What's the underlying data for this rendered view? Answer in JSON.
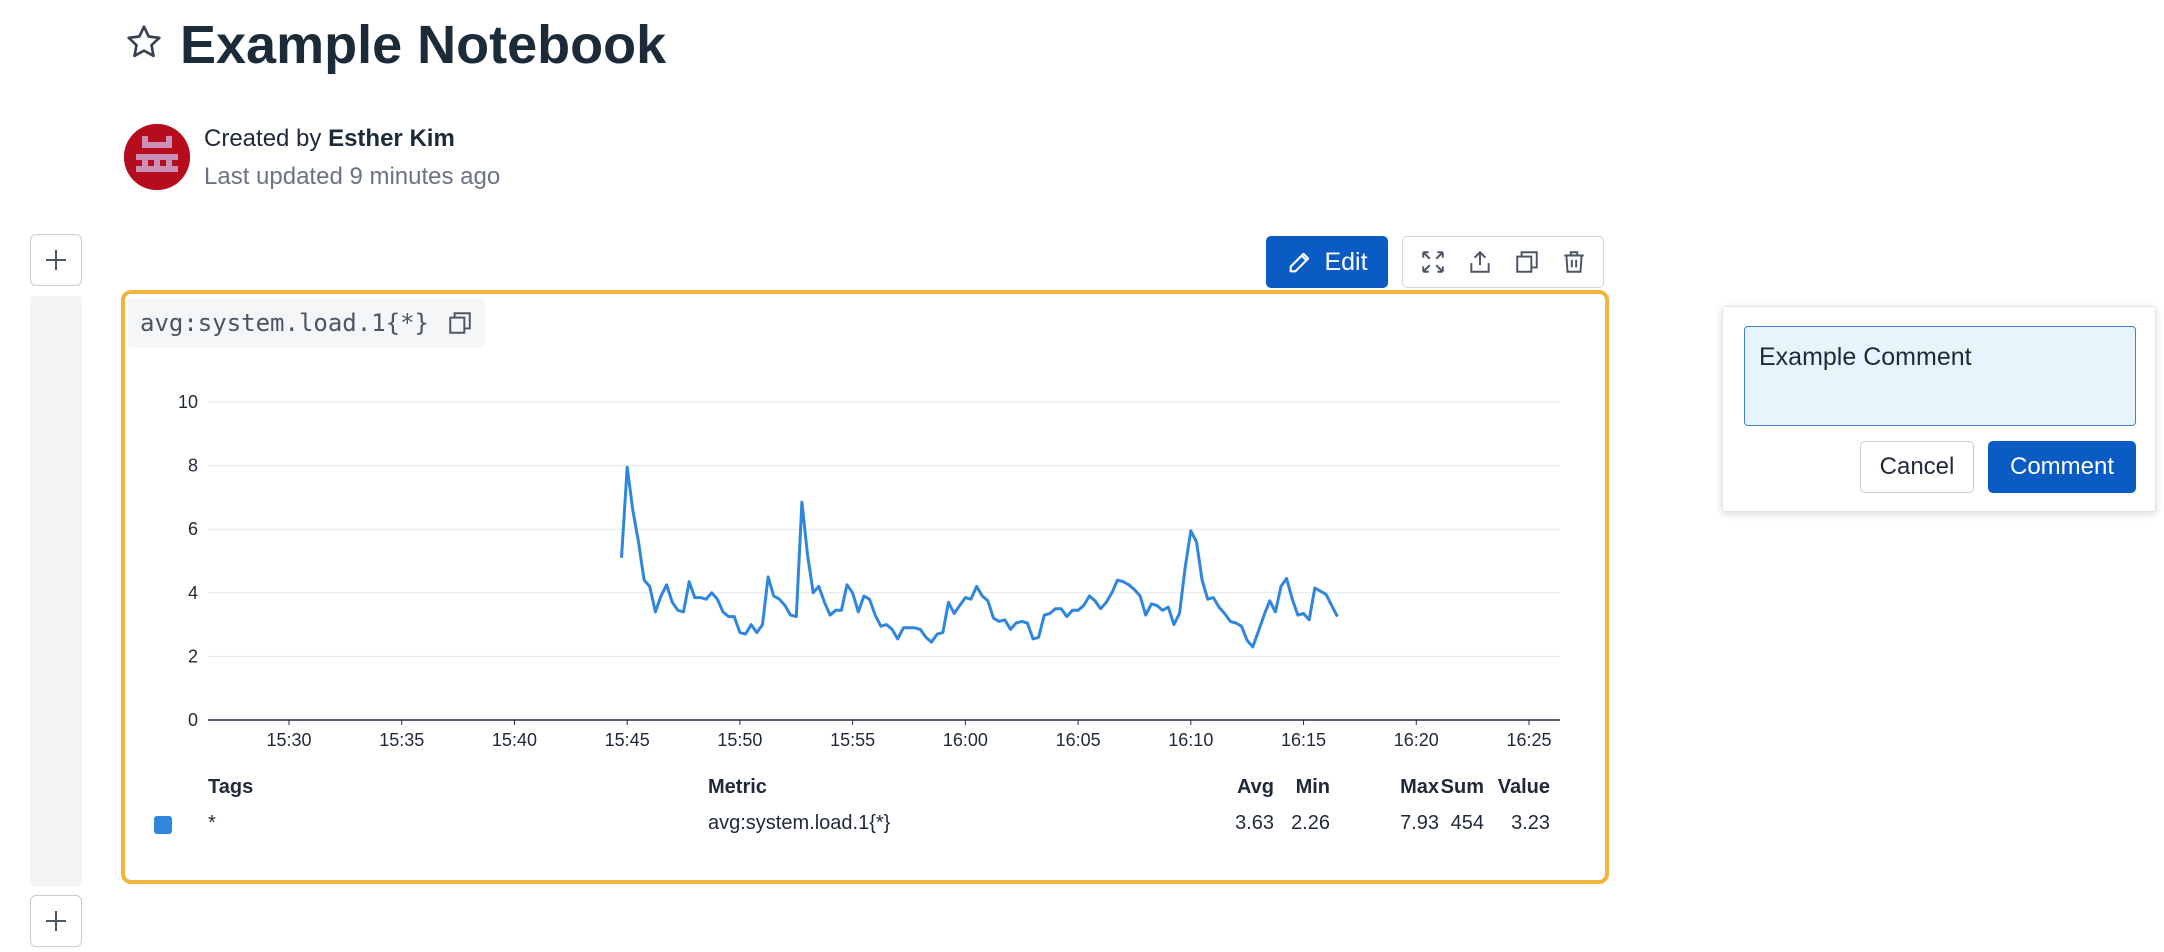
{
  "header": {
    "title": "Example Notebook",
    "star_icon": "star-outline-icon",
    "created_prefix": "Created by",
    "author": "Esther Kim",
    "updated": "Last updated 9 minutes ago"
  },
  "toolbar": {
    "edit_label": "Edit",
    "icons": [
      "expand-icon",
      "export-icon",
      "clone-icon",
      "trash-icon"
    ]
  },
  "cell": {
    "query": "avg:system.load.1{*}",
    "accent_color": "#f2b43a"
  },
  "chart_data": {
    "type": "line",
    "title": "",
    "xlabel": "",
    "ylabel": "",
    "ylim": [
      0,
      10
    ],
    "yticks": [
      "0",
      "2",
      "4",
      "6",
      "8",
      "10"
    ],
    "xticks": [
      "15:30",
      "15:35",
      "15:40",
      "15:45",
      "15:50",
      "15:55",
      "16:00",
      "16:05",
      "16:10",
      "16:15",
      "16:20",
      "16:25"
    ],
    "grid": true,
    "series": [
      {
        "name": "*",
        "color": "#2f86dc",
        "x_start": "15:44:45",
        "interval_seconds": 15,
        "values": [
          5.1,
          7.95,
          6.6,
          5.6,
          4.4,
          4.2,
          3.4,
          3.9,
          4.25,
          3.7,
          3.45,
          3.4,
          4.35,
          3.85,
          3.85,
          3.8,
          4.0,
          3.8,
          3.4,
          3.25,
          3.25,
          2.75,
          2.7,
          3.0,
          2.75,
          3.0,
          4.5,
          3.9,
          3.8,
          3.6,
          3.3,
          3.25,
          6.85,
          5.2,
          4.0,
          4.2,
          3.7,
          3.3,
          3.45,
          3.45,
          4.25,
          4.0,
          3.4,
          3.9,
          3.8,
          3.3,
          2.95,
          3.0,
          2.85,
          2.55,
          2.9,
          2.9,
          2.9,
          2.85,
          2.6,
          2.45,
          2.7,
          2.75,
          3.7,
          3.35,
          3.6,
          3.85,
          3.8,
          4.2,
          3.9,
          3.75,
          3.2,
          3.1,
          3.15,
          2.85,
          3.05,
          3.1,
          3.05,
          2.55,
          2.6,
          3.3,
          3.35,
          3.5,
          3.5,
          3.25,
          3.45,
          3.45,
          3.6,
          3.9,
          3.75,
          3.5,
          3.7,
          4.0,
          4.4,
          4.35,
          4.25,
          4.1,
          3.9,
          3.3,
          3.65,
          3.6,
          3.45,
          3.55,
          3.0,
          3.35,
          4.8,
          5.95,
          5.6,
          4.4,
          3.8,
          3.85,
          3.55,
          3.35,
          3.1,
          3.05,
          2.95,
          2.5,
          2.3,
          2.8,
          3.3,
          3.75,
          3.4,
          4.2,
          4.45,
          3.8,
          3.3,
          3.35,
          3.15,
          4.15,
          4.05,
          3.95,
          3.6,
          3.25
        ]
      }
    ]
  },
  "legend": {
    "headers": {
      "tags": "Tags",
      "metric": "Metric",
      "avg": "Avg",
      "min": "Min",
      "max": "Max",
      "sum": "Sum",
      "value": "Value"
    },
    "row": {
      "tags": "*",
      "metric": "avg:system.load.1{*}",
      "avg": "3.63",
      "min": "2.26",
      "max": "7.93",
      "sum": "454",
      "value": "3.23"
    }
  },
  "comment": {
    "value": "Example Comment",
    "cancel_label": "Cancel",
    "submit_label": "Comment"
  },
  "rail": {
    "add_icon": "plus-icon"
  }
}
